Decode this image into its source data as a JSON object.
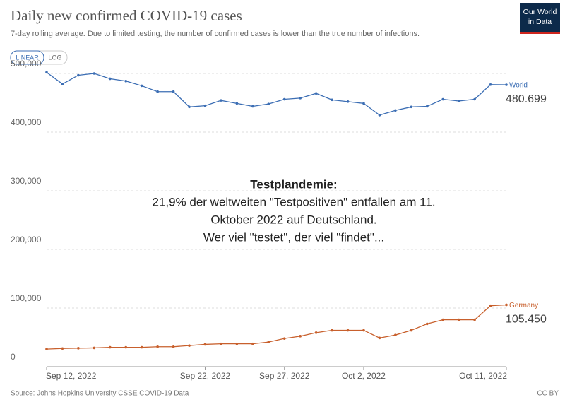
{
  "chart_data": {
    "type": "line",
    "title": "Daily new confirmed COVID-19 cases",
    "subtitle": "7-day rolling average. Due to limited testing, the number of confirmed cases is lower than the true number of infections.",
    "scale_buttons": [
      "LINEAR",
      "LOG"
    ],
    "logo": [
      "Our World",
      "in Data"
    ],
    "annotation": {
      "title": "Testplandemie:",
      "lines": [
        "21,9% der weltweiten \"Testpositiven\" entfallen am 11.",
        "Oktober 2022 auf Deutschland.",
        "Wer viel \"testet\", der viel \"findet\"..."
      ]
    },
    "source": "Source: Johns Hopkins University CSSE COVID-19 Data",
    "license": "CC BY",
    "x": [
      "2022-09-12",
      "2022-09-13",
      "2022-09-14",
      "2022-09-15",
      "2022-09-16",
      "2022-09-17",
      "2022-09-18",
      "2022-09-19",
      "2022-09-20",
      "2022-09-21",
      "2022-09-22",
      "2022-09-23",
      "2022-09-24",
      "2022-09-25",
      "2022-09-26",
      "2022-09-27",
      "2022-09-28",
      "2022-09-29",
      "2022-09-30",
      "2022-10-01",
      "2022-10-02",
      "2022-10-03",
      "2022-10-04",
      "2022-10-05",
      "2022-10-06",
      "2022-10-07",
      "2022-10-08",
      "2022-10-09",
      "2022-10-10",
      "2022-10-11"
    ],
    "xlim": [
      "2022-09-12",
      "2022-10-11"
    ],
    "xticks": [
      {
        "value": "2022-09-12",
        "label": "Sep 12, 2022"
      },
      {
        "value": "2022-09-22",
        "label": "Sep 22, 2022"
      },
      {
        "value": "2022-09-27",
        "label": "Sep 27, 2022"
      },
      {
        "value": "2022-10-02",
        "label": "Oct 2, 2022"
      },
      {
        "value": "2022-10-11",
        "label": "Oct 11, 2022"
      }
    ],
    "ylim": [
      0,
      500000
    ],
    "yticks": [
      0,
      {
        "value": 100000,
        "label": "100,000"
      },
      {
        "value": 200000,
        "label": "200,000"
      },
      {
        "value": 300000,
        "label": "300,000"
      },
      {
        "value": 400000,
        "label": "400,000"
      },
      {
        "value": 500000,
        "label": "500,000"
      }
    ],
    "grid": true,
    "series": [
      {
        "name": "World",
        "color": "#3c6eb4",
        "values": [
          502000,
          482000,
          497000,
          500000,
          491000,
          487000,
          479000,
          469000,
          469000,
          443000,
          445000,
          454000,
          449000,
          444000,
          448000,
          456000,
          458000,
          466000,
          455000,
          452000,
          449000,
          429000,
          437000,
          443000,
          444000,
          456000,
          453000,
          456000,
          481000,
          480699
        ],
        "value_labels": [
          null,
          null,
          null,
          null,
          null,
          null,
          null,
          null,
          null,
          null,
          null,
          null,
          null,
          null,
          null,
          null,
          null,
          null,
          null,
          null,
          null,
          null,
          null,
          null,
          null,
          null,
          null,
          null,
          null,
          "480.699"
        ]
      },
      {
        "name": "Germany",
        "color": "#c8602d",
        "values": [
          30000,
          31000,
          31500,
          32000,
          33000,
          33000,
          33000,
          34000,
          34000,
          36000,
          38000,
          39000,
          39000,
          39000,
          42000,
          48000,
          52000,
          58000,
          62000,
          62000,
          62000,
          49000,
          54000,
          62000,
          73000,
          80000,
          80000,
          80000,
          104000,
          105450
        ],
        "value_labels": [
          null,
          null,
          null,
          null,
          null,
          null,
          null,
          null,
          null,
          null,
          null,
          null,
          null,
          null,
          null,
          null,
          null,
          null,
          null,
          null,
          null,
          null,
          null,
          null,
          null,
          null,
          null,
          null,
          null,
          "105.450"
        ]
      }
    ]
  }
}
